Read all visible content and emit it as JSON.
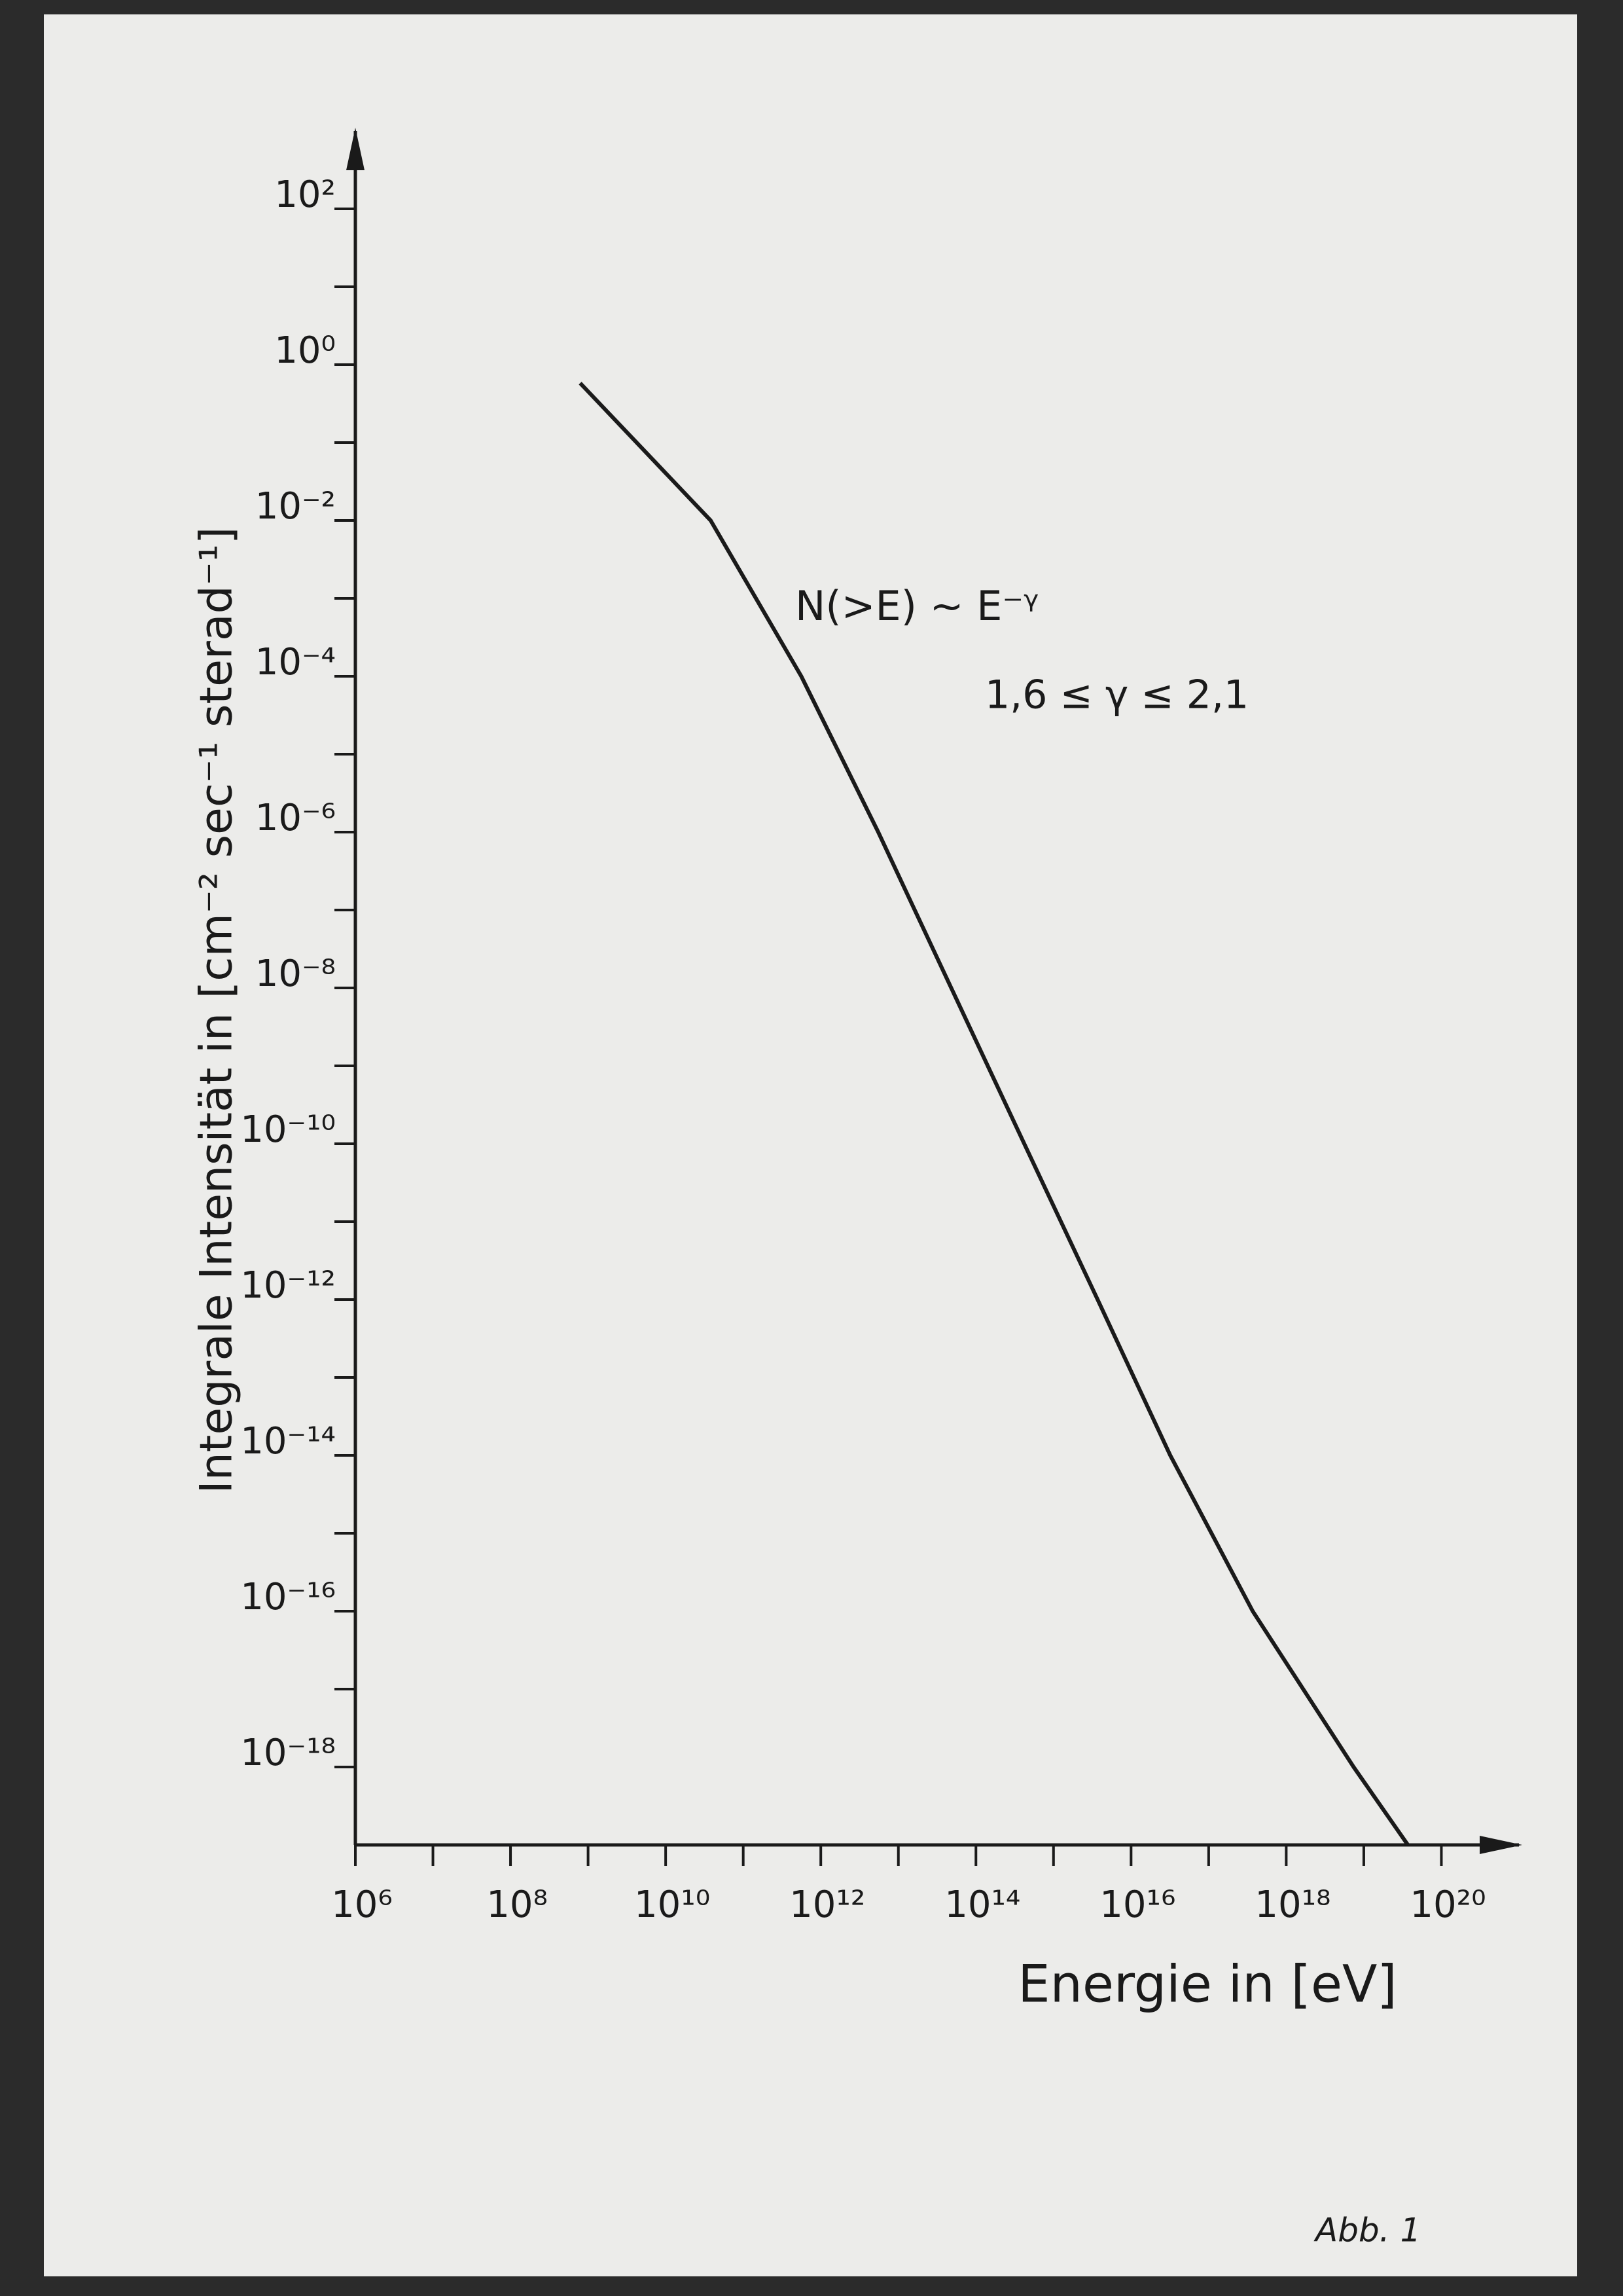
{
  "chart_data": {
    "type": "line",
    "xlabel": "Energie in [eV]",
    "ylabel": "Integrale Intensität in [cm⁻² sec⁻¹ sterad⁻¹]",
    "annotations": [
      "N(>E) ~ E⁻ᵞ",
      "1,6 ≤ γ ≤ 2,1"
    ],
    "footer": "Abb. 1",
    "xscale": "log",
    "yscale": "log",
    "color": "#1a1a1a",
    "x": [
      790000000,
      38000000000,
      560000000000,
      5500000000000,
      48000000000000,
      420000000000000,
      3700000000000000,
      32000000000000000,
      370000000000000000,
      7400000000000000000,
      37000000000000000000
    ],
    "values": [
      0.58,
      0.01,
      0.0001,
      1e-06,
      1e-08,
      1e-10,
      1e-12,
      1e-14,
      1e-16,
      1e-18,
      1e-19
    ],
    "xlim": [
      1000000,
      1e+21
    ],
    "ylim": [
      1e-19,
      1000
    ],
    "xticks": [
      {
        "value": 1000000,
        "label": "10⁶"
      },
      {
        "value": 100000000,
        "label": "10⁸"
      },
      {
        "value": 10000000000,
        "label": "10¹⁰"
      },
      {
        "value": 1000000000000,
        "label": "10¹²"
      },
      {
        "value": 100000000000000,
        "label": "10¹⁴"
      },
      {
        "value": 10000000000000000,
        "label": "10¹⁶"
      },
      {
        "value": 1000000000000000000,
        "label": "10¹⁸"
      },
      {
        "value": 100000000000000000000,
        "label": "10²⁰"
      }
    ],
    "xminorticks": [
      10000000,
      1000000000,
      100000000000,
      10000000000000,
      1000000000000000,
      100000000000000000,
      10000000000000000000
    ],
    "yticks": [
      {
        "value": 1e-18,
        "label": "10⁻¹⁸"
      },
      {
        "value": 1e-16,
        "label": "10⁻¹⁶"
      },
      {
        "value": 1e-14,
        "label": "10⁻¹⁴"
      },
      {
        "value": 1e-12,
        "label": "10⁻¹²"
      },
      {
        "value": 1e-10,
        "label": "10⁻¹⁰"
      },
      {
        "value": 1e-08,
        "label": "10⁻⁸"
      },
      {
        "value": 1e-06,
        "label": "10⁻⁶"
      },
      {
        "value": 0.0001,
        "label": "10⁻⁴"
      },
      {
        "value": 0.01,
        "label": "10⁻²"
      },
      {
        "value": 1,
        "label": "10⁰"
      },
      {
        "value": 100,
        "label": "10²"
      }
    ],
    "yminorticks": [
      1e-17,
      1e-15,
      1e-13,
      1e-11,
      1e-09,
      1e-07,
      1e-05,
      0.001,
      0.1,
      10
    ]
  }
}
